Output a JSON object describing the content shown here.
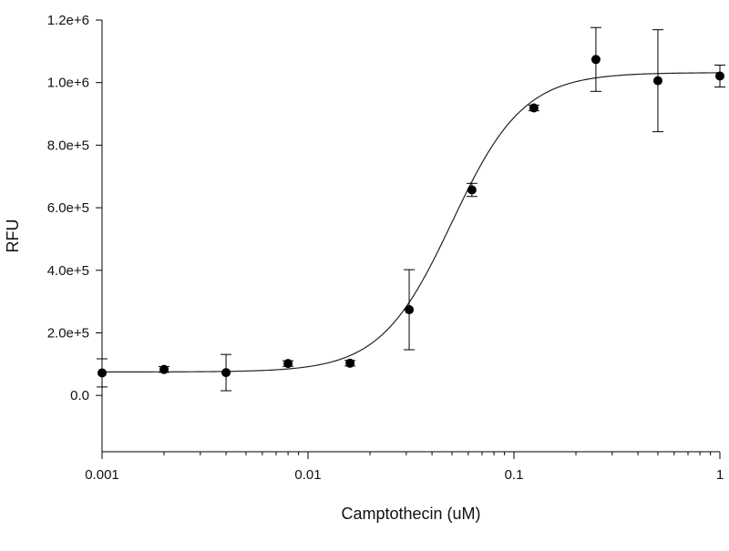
{
  "chart_data": {
    "type": "scatter",
    "xlabel": "Camptothecin (uM)",
    "ylabel": "RFU",
    "xscale": "log",
    "xlim": [
      0.001,
      1
    ],
    "ylim": [
      -180000,
      1200000
    ],
    "grid": false,
    "x_ticks": [
      {
        "value": 0.001,
        "label": "0.001"
      },
      {
        "value": 0.01,
        "label": "0.01"
      },
      {
        "value": 0.1,
        "label": "0.1"
      },
      {
        "value": 1,
        "label": "1"
      }
    ],
    "y_ticks": [
      {
        "value": 0,
        "label": "0.0"
      },
      {
        "value": 200000,
        "label": "2.0e+5"
      },
      {
        "value": 400000,
        "label": "4.0e+5"
      },
      {
        "value": 600000,
        "label": "6.0e+5"
      },
      {
        "value": 800000,
        "label": "8.0e+5"
      },
      {
        "value": 1000000,
        "label": "1.0e+6"
      },
      {
        "value": 1200000,
        "label": "1.2e+6"
      }
    ],
    "series": [
      {
        "points": [
          {
            "x": 0.001,
            "y": 72000,
            "err": 45000
          },
          {
            "x": 0.002,
            "y": 83000,
            "err": 9000
          },
          {
            "x": 0.004,
            "y": 73000,
            "err": 58000
          },
          {
            "x": 0.008,
            "y": 102000,
            "err": 9000
          },
          {
            "x": 0.016,
            "y": 103000,
            "err": 9000
          },
          {
            "x": 0.031,
            "y": 274000,
            "err": 128000
          },
          {
            "x": 0.0625,
            "y": 657000,
            "err": 21000
          },
          {
            "x": 0.125,
            "y": 919000,
            "err": 9000
          },
          {
            "x": 0.25,
            "y": 1074000,
            "err": 102000
          },
          {
            "x": 0.5,
            "y": 1006000,
            "err": 163000
          },
          {
            "x": 1,
            "y": 1021000,
            "err": 35000
          }
        ]
      }
    ],
    "fit_curve": {
      "type": "four-parameter-logistic",
      "bottom": 75000,
      "top": 1032000,
      "ec50": 0.05,
      "hill": 2.5
    }
  }
}
